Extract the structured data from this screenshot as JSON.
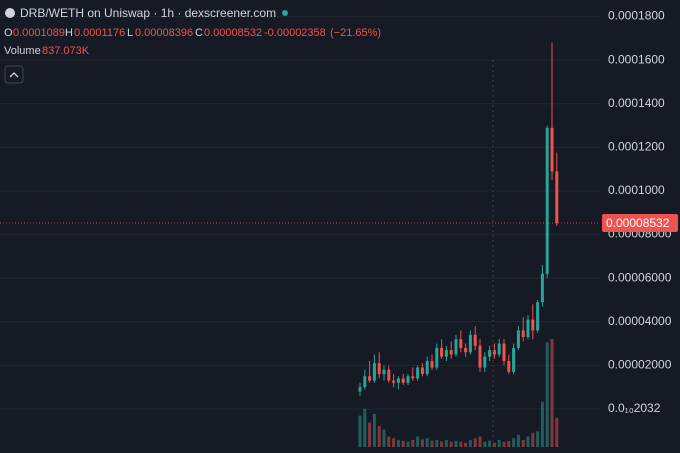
{
  "chart_data": {
    "type": "candlestick",
    "title": "DRB/WETH on Uniswap · 1h · dexscreener.com",
    "ohlc_legend": {
      "open_label": "O",
      "open": 0.0001089,
      "high_label": "H",
      "high": 0.0001176,
      "low_label": "L",
      "low": 8.396e-05,
      "close_label": "C",
      "close": 8.532e-05,
      "change": -2.358e-05,
      "change_pct": "(−21.65%)"
    },
    "volume_title": "Volume",
    "volume_label": "837.073K",
    "up_color": "#26a69a",
    "down_color": "#ef5350",
    "grid": true,
    "ylim": [
      -2.02e-05,
      0.0001876
    ],
    "yticks": [
      {
        "value": 2.032e-11,
        "label": "0.0₁₀2032"
      },
      {
        "value": 2e-05,
        "label": "0.00002000"
      },
      {
        "value": 4e-05,
        "label": "0.00004000"
      },
      {
        "value": 6e-05,
        "label": "0.00006000"
      },
      {
        "value": 8e-05,
        "label": "0.00008000"
      },
      {
        "value": 0.0001,
        "label": "0.0001000"
      },
      {
        "value": 0.00012,
        "label": "0.0001200"
      },
      {
        "value": 0.00014,
        "label": "0.0001400"
      },
      {
        "value": 0.00016,
        "label": "0.0001600"
      },
      {
        "value": 0.00018,
        "label": "0.0001800"
      }
    ],
    "volume_ylim": [
      0,
      3500000
    ],
    "open": [
      8e-06,
      1e-05,
      1.5e-05,
      1.3e-05,
      2.1e-05,
      1.6e-05,
      1.8e-05,
      1.3e-05,
      1.2e-05,
      1.4e-05,
      1.2e-05,
      1.5e-05,
      1.4e-05,
      1.9e-05,
      1.6e-05,
      2.2e-05,
      1.9e-05,
      2.8e-05,
      2.4e-05,
      2.7e-05,
      2.5e-05,
      3.2e-05,
      2.8e-05,
      2.6e-05,
      3.4e-05,
      2.9e-05,
      1.9e-05,
      2.4e-05,
      2.7e-05,
      2.5e-05,
      3e-05,
      2.2e-05,
      1.7e-05,
      2.8e-05,
      3.6e-05,
      3.3e-05,
      4.1e-05,
      3.6e-05,
      4.9e-05,
      6.2e-05,
      0.000129,
      0.0001089
    ],
    "high": [
      1.2e-05,
      1.8e-05,
      2.2e-05,
      2.5e-05,
      2.6e-05,
      2e-05,
      2e-05,
      1.6e-05,
      1.5e-05,
      1.6e-05,
      1.6e-05,
      1.9e-05,
      2e-05,
      2.1e-05,
      2.4e-05,
      2.5e-05,
      3e-05,
      3.2e-05,
      2.9e-05,
      3.1e-05,
      3.4e-05,
      3.6e-05,
      3e-05,
      3.6e-05,
      3.8e-05,
      3.2e-05,
      2.6e-05,
      2.9e-05,
      3e-05,
      3.2e-05,
      3.2e-05,
      2.5e-05,
      3e-05,
      3.8e-05,
      4.2e-05,
      4.3e-05,
      4.8e-05,
      5e-05,
      6.6e-05,
      0.00013,
      0.000168,
      0.0001176
    ],
    "low": [
      6e-06,
      9e-06,
      1.2e-05,
      1.2e-05,
      1.4e-05,
      1.3e-05,
      1.2e-05,
      1e-05,
      9e-06,
      1.1e-05,
      1.1e-05,
      1.3e-05,
      1.3e-05,
      1.5e-05,
      1.5e-05,
      1.8e-05,
      1.8e-05,
      2.3e-05,
      2.2e-05,
      2.3e-05,
      2.4e-05,
      2.6e-05,
      2.4e-05,
      2.5e-05,
      2.7e-05,
      1.7e-05,
      1.7e-05,
      2.2e-05,
      2.3e-05,
      2.4e-05,
      2e-05,
      1.6e-05,
      1.6e-05,
      2.7e-05,
      3.1e-05,
      3.2e-05,
      3.2e-05,
      3.5e-05,
      4.7e-05,
      6e-05,
      0.000105,
      8.396e-05
    ],
    "close": [
      1e-05,
      1.5e-05,
      1.3e-05,
      2.1e-05,
      1.6e-05,
      1.8e-05,
      1.3e-05,
      1.2e-05,
      1.4e-05,
      1.2e-05,
      1.5e-05,
      1.4e-05,
      1.9e-05,
      1.6e-05,
      2.2e-05,
      1.9e-05,
      2.8e-05,
      2.4e-05,
      2.7e-05,
      2.5e-05,
      3.2e-05,
      2.8e-05,
      2.6e-05,
      3.4e-05,
      2.9e-05,
      1.9e-05,
      2.4e-05,
      2.7e-05,
      2.5e-05,
      3e-05,
      2.2e-05,
      1.7e-05,
      2.8e-05,
      3.6e-05,
      3.3e-05,
      4.1e-05,
      3.6e-05,
      4.9e-05,
      6.2e-05,
      0.000129,
      0.0001089,
      8.532e-05
    ],
    "volume": [
      900000,
      1100000,
      700000,
      950000,
      600000,
      500000,
      300000,
      250000,
      200000,
      180000,
      150000,
      200000,
      300000,
      220000,
      250000,
      180000,
      200000,
      160000,
      200000,
      150000,
      180000,
      150000,
      120000,
      200000,
      250000,
      300000,
      150000,
      180000,
      120000,
      200000,
      150000,
      170000,
      250000,
      350000,
      200000,
      300000,
      400000,
      450000,
      1300000,
      3000000,
      3100000,
      837073
    ]
  }
}
